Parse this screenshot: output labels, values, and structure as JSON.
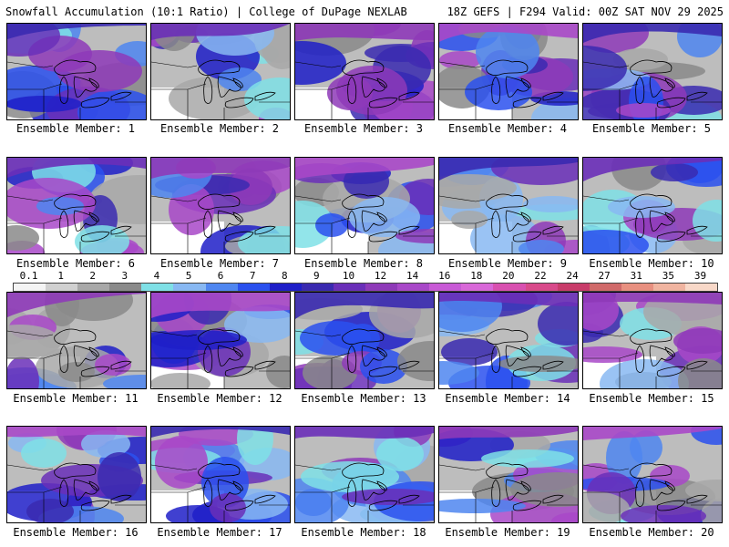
{
  "header": {
    "title_left": "Snowfall Accumulation (10:1 Ratio) | College of DuPage NEXLAB",
    "title_right": "18Z GEFS | F294 Valid: 00Z SAT NOV 29 2025"
  },
  "colorbar": {
    "ticks": [
      "0.1",
      "1",
      "2",
      "3",
      "4",
      "5",
      "6",
      "7",
      "8",
      "9",
      "10",
      "12",
      "14",
      "16",
      "18",
      "20",
      "22",
      "24",
      "27",
      "31",
      "35",
      "39"
    ],
    "colors": [
      "#f4f4f4",
      "#d0d0d0",
      "#a8a8a8",
      "#8a8a8a",
      "#7fe0e6",
      "#88b8f2",
      "#4f86f0",
      "#2a50ee",
      "#1f1fc8",
      "#3a2ab0",
      "#6a2fb8",
      "#8e3ab8",
      "#a848c8",
      "#c85ad6",
      "#d868d8",
      "#d850b0",
      "#d84a8a",
      "#c83c6a",
      "#d06a6a",
      "#e89080",
      "#f0b4a0",
      "#f8d8c8"
    ]
  },
  "panels": [
    {
      "label": "Ensemble Member: 1"
    },
    {
      "label": "Ensemble Member: 2"
    },
    {
      "label": "Ensemble Member: 3"
    },
    {
      "label": "Ensemble Member: 4"
    },
    {
      "label": "Ensemble Member: 5"
    },
    {
      "label": "Ensemble Member: 6"
    },
    {
      "label": "Ensemble Member: 7"
    },
    {
      "label": "Ensemble Member: 8"
    },
    {
      "label": "Ensemble Member: 9"
    },
    {
      "label": "Ensemble Member: 10"
    },
    {
      "label": "Ensemble Member: 11"
    },
    {
      "label": "Ensemble Member: 12"
    },
    {
      "label": "Ensemble Member: 13"
    },
    {
      "label": "Ensemble Member: 14"
    },
    {
      "label": "Ensemble Member: 15"
    },
    {
      "label": "Ensemble Member: 16"
    },
    {
      "label": "Ensemble Member: 17"
    },
    {
      "label": "Ensemble Member: 18"
    },
    {
      "label": "Ensemble Member: 19"
    },
    {
      "label": "Ensemble Member: 20"
    }
  ]
}
